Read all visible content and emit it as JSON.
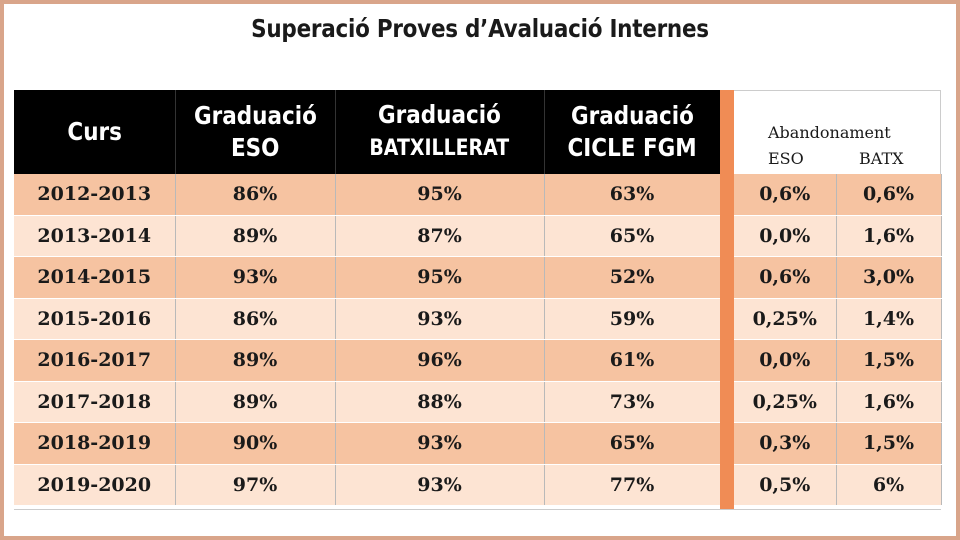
{
  "title": "Superació Proves d’Avaluació Internes",
  "headers": {
    "curs": "Curs",
    "eso_line1": "Graduació",
    "eso_line2": "ESO",
    "batx_line1": "Graduació",
    "batx_line2": "BATXILLERAT",
    "cicle_line1": "Graduació",
    "cicle_line2": "CICLE FGM",
    "abandon": "Abandonament",
    "abandon_eso": "ESO",
    "abandon_batx": "BATX"
  },
  "rows": [
    {
      "curs": "2012-2013",
      "eso": "86%",
      "batx": "95%",
      "cicle": "63%",
      "ab_eso": "0,6%",
      "ab_batx": "0,6%"
    },
    {
      "curs": "2013-2014",
      "eso": "89%",
      "batx": "87%",
      "cicle": "65%",
      "ab_eso": "0,0%",
      "ab_batx": "1,6%"
    },
    {
      "curs": "2014-2015",
      "eso": "93%",
      "batx": "95%",
      "cicle": "52%",
      "ab_eso": "0,6%",
      "ab_batx": "3,0%"
    },
    {
      "curs": "2015-2016",
      "eso": "86%",
      "batx": "93%",
      "cicle": "59%",
      "ab_eso": "0,25%",
      "ab_batx": "1,4%"
    },
    {
      "curs": "2016-2017",
      "eso": "89%",
      "batx": "96%",
      "cicle": "61%",
      "ab_eso": "0,0%",
      "ab_batx": "1,5%"
    },
    {
      "curs": "2017-2018",
      "eso": "89%",
      "batx": "88%",
      "cicle": "73%",
      "ab_eso": "0,25%",
      "ab_batx": "1,6%"
    },
    {
      "curs": "2018-2019",
      "eso": "90%",
      "batx": "93%",
      "cicle": "65%",
      "ab_eso": "0,3%",
      "ab_batx": "1,5%"
    },
    {
      "curs": "2019-2020",
      "eso": "97%",
      "batx": "93%",
      "cicle": "77%",
      "ab_eso": "0,5%",
      "ab_batx": "6%"
    }
  ],
  "colors": {
    "row_dark": "#f6c3a1",
    "row_light": "#fde4d3",
    "separator": "#f08c55",
    "header_bg": "#000000",
    "frame": "#d9a58a"
  }
}
